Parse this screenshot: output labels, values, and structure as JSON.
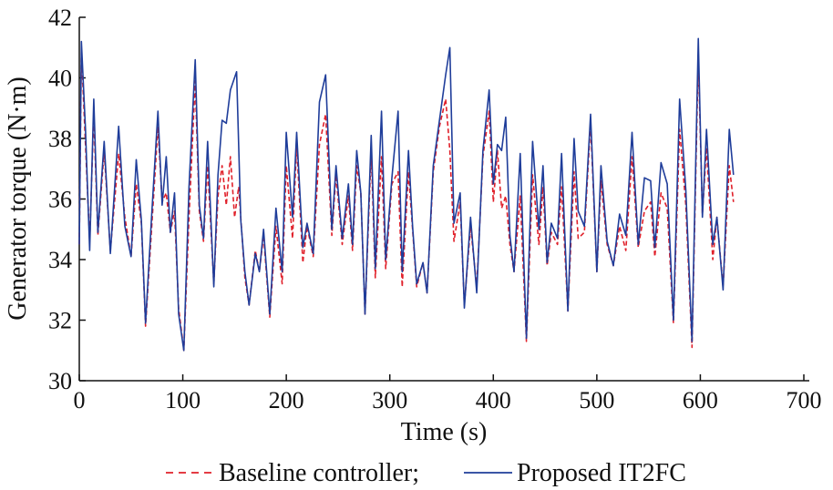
{
  "chart_data": {
    "type": "line",
    "title": "",
    "xlabel": "Time (s)",
    "ylabel": "Generator torque (N·m)",
    "xlim": [
      0,
      700
    ],
    "ylim": [
      30,
      42
    ],
    "x_ticks": [
      "0",
      "100",
      "200",
      "300",
      "400",
      "500",
      "600",
      "700"
    ],
    "y_ticks": [
      "30",
      "32",
      "34",
      "36",
      "38",
      "40",
      "42"
    ],
    "grid": false,
    "legend_position": "bottom",
    "colors": {
      "Baseline controller": "#e0202a",
      "Proposed IT2FC": "#1f3d9a"
    },
    "series": [
      {
        "name": "Baseline controller",
        "line_style": "dashed",
        "points": [
          [
            0,
            34.5
          ],
          [
            2,
            40.9
          ],
          [
            6,
            37.8
          ],
          [
            10,
            34.6
          ],
          [
            14,
            38.8
          ],
          [
            18,
            34.8
          ],
          [
            24,
            37.6
          ],
          [
            30,
            34.3
          ],
          [
            38,
            37.5
          ],
          [
            44,
            35.4
          ],
          [
            50,
            34.1
          ],
          [
            55,
            36.5
          ],
          [
            60,
            35.2
          ],
          [
            64,
            31.8
          ],
          [
            70,
            35.1
          ],
          [
            76,
            38.4
          ],
          [
            80,
            35.9
          ],
          [
            84,
            36.2
          ],
          [
            88,
            34.9
          ],
          [
            92,
            35.6
          ],
          [
            96,
            32.4
          ],
          [
            101,
            31.0
          ],
          [
            106,
            35.4
          ],
          [
            112,
            39.9
          ],
          [
            116,
            35.6
          ],
          [
            120,
            34.6
          ],
          [
            124,
            37.1
          ],
          [
            130,
            33.2
          ],
          [
            134,
            36.1
          ],
          [
            138,
            37.1
          ],
          [
            142,
            35.8
          ],
          [
            146,
            37.4
          ],
          [
            150,
            35.4
          ],
          [
            154,
            36.4
          ],
          [
            160,
            33.4
          ],
          [
            164,
            32.5
          ],
          [
            170,
            34.3
          ],
          [
            174,
            33.6
          ],
          [
            178,
            34.8
          ],
          [
            184,
            32.1
          ],
          [
            190,
            35.1
          ],
          [
            196,
            33.2
          ],
          [
            200,
            37.1
          ],
          [
            206,
            34.7
          ],
          [
            210,
            37.8
          ],
          [
            216,
            33.9
          ],
          [
            220,
            35.1
          ],
          [
            226,
            34.1
          ],
          [
            232,
            37.8
          ],
          [
            238,
            38.8
          ],
          [
            244,
            34.8
          ],
          [
            248,
            36.8
          ],
          [
            254,
            34.5
          ],
          [
            260,
            36.1
          ],
          [
            264,
            34.3
          ],
          [
            268,
            37.1
          ],
          [
            272,
            36.2
          ],
          [
            276,
            32.2
          ],
          [
            282,
            37.6
          ],
          [
            286,
            33.4
          ],
          [
            292,
            37.4
          ],
          [
            296,
            33.7
          ],
          [
            302,
            36.5
          ],
          [
            308,
            36.9
          ],
          [
            312,
            33.1
          ],
          [
            318,
            36.9
          ],
          [
            322,
            35.0
          ],
          [
            326,
            33.1
          ],
          [
            332,
            33.9
          ],
          [
            336,
            32.9
          ],
          [
            342,
            36.9
          ],
          [
            348,
            38.4
          ],
          [
            354,
            39.3
          ],
          [
            358,
            37.6
          ],
          [
            362,
            34.6
          ],
          [
            368,
            35.9
          ],
          [
            372,
            32.5
          ],
          [
            378,
            35.1
          ],
          [
            384,
            33.1
          ],
          [
            390,
            37.4
          ],
          [
            396,
            38.9
          ],
          [
            400,
            35.9
          ],
          [
            404,
            37.6
          ],
          [
            408,
            35.7
          ],
          [
            412,
            36.1
          ],
          [
            416,
            34.5
          ],
          [
            420,
            33.6
          ],
          [
            426,
            36.1
          ],
          [
            432,
            31.3
          ],
          [
            438,
            36.8
          ],
          [
            444,
            34.5
          ],
          [
            448,
            36.4
          ],
          [
            452,
            33.8
          ],
          [
            456,
            34.9
          ],
          [
            462,
            34.5
          ],
          [
            466,
            36.4
          ],
          [
            472,
            32.3
          ],
          [
            478,
            36.9
          ],
          [
            482,
            34.7
          ],
          [
            488,
            34.9
          ],
          [
            494,
            38.5
          ],
          [
            500,
            33.6
          ],
          [
            504,
            36.6
          ],
          [
            510,
            34.5
          ],
          [
            516,
            33.8
          ],
          [
            522,
            35.1
          ],
          [
            528,
            34.3
          ],
          [
            534,
            37.4
          ],
          [
            540,
            34.4
          ],
          [
            546,
            35.6
          ],
          [
            552,
            35.9
          ],
          [
            556,
            34.1
          ],
          [
            562,
            36.2
          ],
          [
            568,
            35.7
          ],
          [
            574,
            31.9
          ],
          [
            580,
            38.3
          ],
          [
            586,
            35.8
          ],
          [
            592,
            31.1
          ],
          [
            598,
            40.7
          ],
          [
            602,
            35.5
          ],
          [
            606,
            37.7
          ],
          [
            612,
            34.0
          ],
          [
            616,
            35.4
          ],
          [
            622,
            33.1
          ],
          [
            628,
            37.1
          ],
          [
            632,
            35.9
          ]
        ]
      },
      {
        "name": "Proposed IT2FC",
        "line_style": "solid",
        "points": [
          [
            0,
            34.5
          ],
          [
            2,
            41.2
          ],
          [
            6,
            38.3
          ],
          [
            10,
            34.3
          ],
          [
            14,
            39.3
          ],
          [
            18,
            34.9
          ],
          [
            24,
            37.9
          ],
          [
            30,
            34.2
          ],
          [
            38,
            38.4
          ],
          [
            44,
            35.1
          ],
          [
            50,
            34.1
          ],
          [
            55,
            37.3
          ],
          [
            60,
            35.3
          ],
          [
            64,
            31.9
          ],
          [
            70,
            35.5
          ],
          [
            76,
            38.9
          ],
          [
            80,
            35.8
          ],
          [
            84,
            37.4
          ],
          [
            88,
            34.9
          ],
          [
            92,
            36.2
          ],
          [
            96,
            32.2
          ],
          [
            101,
            31.0
          ],
          [
            106,
            36.4
          ],
          [
            112,
            40.6
          ],
          [
            116,
            35.8
          ],
          [
            120,
            34.7
          ],
          [
            124,
            37.9
          ],
          [
            130,
            33.1
          ],
          [
            134,
            36.8
          ],
          [
            138,
            38.6
          ],
          [
            142,
            38.5
          ],
          [
            146,
            39.6
          ],
          [
            152,
            40.2
          ],
          [
            156,
            35.3
          ],
          [
            160,
            33.6
          ],
          [
            164,
            32.5
          ],
          [
            170,
            34.2
          ],
          [
            174,
            33.6
          ],
          [
            178,
            35.0
          ],
          [
            184,
            32.2
          ],
          [
            190,
            35.7
          ],
          [
            196,
            33.6
          ],
          [
            200,
            38.2
          ],
          [
            206,
            35.4
          ],
          [
            210,
            38.2
          ],
          [
            216,
            34.4
          ],
          [
            220,
            35.2
          ],
          [
            226,
            34.2
          ],
          [
            232,
            39.2
          ],
          [
            238,
            40.1
          ],
          [
            244,
            35.0
          ],
          [
            248,
            37.1
          ],
          [
            254,
            34.7
          ],
          [
            260,
            36.5
          ],
          [
            264,
            34.5
          ],
          [
            268,
            37.6
          ],
          [
            272,
            36.2
          ],
          [
            276,
            32.2
          ],
          [
            282,
            38.1
          ],
          [
            286,
            33.7
          ],
          [
            292,
            38.9
          ],
          [
            296,
            34.0
          ],
          [
            302,
            36.7
          ],
          [
            308,
            38.9
          ],
          [
            312,
            33.6
          ],
          [
            318,
            37.6
          ],
          [
            322,
            35.1
          ],
          [
            326,
            33.2
          ],
          [
            332,
            33.9
          ],
          [
            336,
            32.9
          ],
          [
            342,
            37.1
          ],
          [
            348,
            38.6
          ],
          [
            354,
            40.1
          ],
          [
            358,
            41.0
          ],
          [
            362,
            35.2
          ],
          [
            368,
            36.2
          ],
          [
            372,
            32.4
          ],
          [
            378,
            35.4
          ],
          [
            384,
            32.9
          ],
          [
            390,
            37.6
          ],
          [
            396,
            39.6
          ],
          [
            400,
            36.5
          ],
          [
            404,
            37.8
          ],
          [
            408,
            37.6
          ],
          [
            412,
            38.7
          ],
          [
            416,
            34.8
          ],
          [
            420,
            33.6
          ],
          [
            426,
            37.5
          ],
          [
            432,
            31.4
          ],
          [
            438,
            37.9
          ],
          [
            444,
            35.0
          ],
          [
            448,
            37.1
          ],
          [
            452,
            33.9
          ],
          [
            456,
            35.2
          ],
          [
            462,
            34.7
          ],
          [
            466,
            37.5
          ],
          [
            472,
            32.3
          ],
          [
            478,
            38.0
          ],
          [
            482,
            35.6
          ],
          [
            488,
            35.1
          ],
          [
            494,
            38.8
          ],
          [
            500,
            33.6
          ],
          [
            504,
            37.1
          ],
          [
            510,
            34.6
          ],
          [
            516,
            33.8
          ],
          [
            522,
            35.5
          ],
          [
            528,
            34.8
          ],
          [
            534,
            38.2
          ],
          [
            540,
            34.5
          ],
          [
            546,
            36.7
          ],
          [
            552,
            36.6
          ],
          [
            556,
            34.4
          ],
          [
            562,
            37.2
          ],
          [
            568,
            36.5
          ],
          [
            574,
            32.0
          ],
          [
            580,
            39.3
          ],
          [
            586,
            36.3
          ],
          [
            592,
            31.3
          ],
          [
            598,
            41.3
          ],
          [
            602,
            35.4
          ],
          [
            606,
            38.3
          ],
          [
            612,
            34.5
          ],
          [
            616,
            35.4
          ],
          [
            622,
            33.0
          ],
          [
            628,
            38.3
          ],
          [
            632,
            36.8
          ]
        ]
      }
    ]
  }
}
